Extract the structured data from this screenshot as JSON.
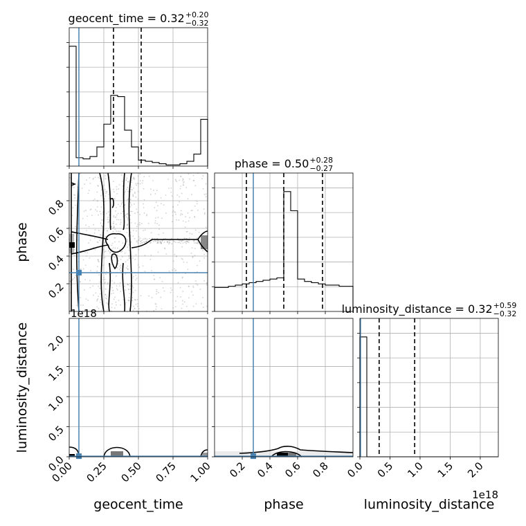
{
  "chart_data": {
    "type": "corner",
    "parameters": [
      "geocent_time",
      "phase",
      "luminosity_distance"
    ],
    "offset_text": "1e18",
    "titles": [
      {
        "param": "geocent_time",
        "label": "geocent_time = 0.32",
        "sup": "+0.20",
        "sub": "−0.32"
      },
      {
        "param": "phase",
        "label": "phase = 0.50",
        "sup": "+0.28",
        "sub": "−0.27"
      },
      {
        "param": "luminosity_distance",
        "label": "luminosity_distance = 0.32",
        "sup": "+0.59",
        "sub": "−0.32"
      }
    ],
    "ranges": {
      "geocent_time": [
        0,
        1
      ],
      "phase": [
        0,
        1
      ],
      "luminosity_distance": [
        0,
        2.3
      ]
    },
    "ticks": {
      "geocent_time": {
        "values": [
          0,
          0.25,
          0.5,
          0.75,
          1.0
        ],
        "labels": [
          "0.00",
          "0.25",
          "0.50",
          "0.75",
          "1.00"
        ]
      },
      "phase": {
        "values": [
          0.2,
          0.4,
          0.6,
          0.8
        ],
        "labels": [
          "0.2",
          "0.4",
          "0.6",
          "0.8"
        ]
      },
      "luminosity_distance": {
        "values": [
          0,
          0.5,
          1.0,
          1.5,
          2.0
        ],
        "labels": [
          "0.0",
          "0.5",
          "1.0",
          "1.5",
          "2.0"
        ]
      }
    },
    "truths": {
      "geocent_time": 0.07,
      "phase": 0.28,
      "luminosity_distance": 0.01
    },
    "quantiles": {
      "geocent_time": [
        0.0,
        0.32,
        0.52
      ],
      "phase": [
        0.23,
        0.5,
        0.78
      ],
      "luminosity_distance": [
        0.0,
        0.32,
        0.91
      ]
    },
    "histograms": {
      "geocent_time": {
        "edges": [
          0,
          0.05,
          0.1,
          0.15,
          0.2,
          0.25,
          0.3,
          0.35,
          0.4,
          0.45,
          0.5,
          0.55,
          0.6,
          0.65,
          0.7,
          0.75,
          0.8,
          0.85,
          0.9,
          0.95,
          1.0
        ],
        "heights": [
          1.0,
          0.07,
          0.06,
          0.08,
          0.16,
          0.35,
          0.59,
          0.58,
          0.3,
          0.16,
          0.05,
          0.04,
          0.03,
          0.02,
          0.01,
          0.01,
          0.02,
          0.04,
          0.1,
          0.39
        ]
      },
      "phase": {
        "edges": [
          0,
          0.05,
          0.1,
          0.15,
          0.2,
          0.25,
          0.3,
          0.35,
          0.4,
          0.45,
          0.5,
          0.55,
          0.6,
          0.65,
          0.7,
          0.75,
          0.8,
          0.85,
          0.9,
          0.95,
          1.0
        ],
        "heights": [
          0.2,
          0.2,
          0.21,
          0.22,
          0.23,
          0.24,
          0.25,
          0.26,
          0.27,
          0.28,
          1.0,
          0.84,
          0.27,
          0.25,
          0.24,
          0.23,
          0.22,
          0.22,
          0.21,
          0.21
        ]
      },
      "luminosity_distance": {
        "edges": [
          0,
          0.115,
          2.3
        ],
        "heights": [
          1.0,
          0.0
        ]
      }
    }
  }
}
